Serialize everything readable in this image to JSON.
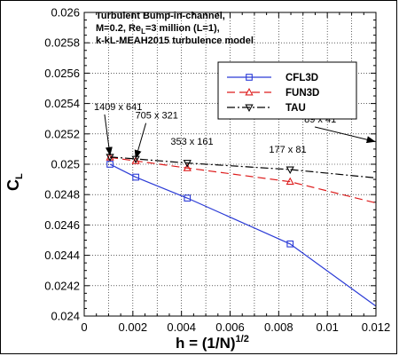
{
  "chart_data": {
    "type": "line",
    "title_lines": [
      "Turbulent Bump-in-channel,",
      "M=0.2, Re",
      "=3 million (L=1),",
      "k-kL-MEAH2015 turbulence model"
    ],
    "re_subscript": "L",
    "xlabel_main": "h = (1/N)",
    "xlabel_sup": "1/2",
    "ylabel_main": "C",
    "ylabel_sub": "L",
    "xlim": [
      0,
      0.012
    ],
    "ylim": [
      0.024,
      0.026
    ],
    "xticks": [
      0,
      0.002,
      0.004,
      0.006,
      0.008,
      0.01,
      0.012
    ],
    "xtick_labels": [
      "0",
      "0.002",
      "0.004",
      "0.006",
      "0.008",
      "0.01",
      "0.012"
    ],
    "yticks": [
      0.024,
      0.0242,
      0.0244,
      0.0246,
      0.0248,
      0.025,
      0.0252,
      0.0254,
      0.0256,
      0.0258,
      0.026
    ],
    "ytick_labels": [
      "0.024",
      "0.0242",
      "0.0244",
      "0.0246",
      "0.0248",
      "0.025",
      "0.0252",
      "0.0254",
      "0.0256",
      "0.0258",
      "0.026"
    ],
    "grid": true,
    "legend_position": "top-right",
    "series": [
      {
        "name": "CFL3D",
        "color": "#2b3bd6",
        "dash": "solid",
        "marker": "square",
        "x": [
          0.00106,
          0.00212,
          0.00424,
          0.00847
        ],
        "y": [
          0.025,
          0.024915,
          0.024777,
          0.024475
        ],
        "extend": [
          0.012,
          0.024065
        ]
      },
      {
        "name": "FUN3D",
        "color": "#dd1c1c",
        "dash": "dashed",
        "marker": "triangle-up",
        "x": [
          0.00106,
          0.00212,
          0.00424,
          0.00847
        ],
        "y": [
          0.025045,
          0.025022,
          0.024975,
          0.024885
        ],
        "extend": [
          0.012,
          0.024745
        ]
      },
      {
        "name": "TAU",
        "color": "#000000",
        "dash": "dashdot",
        "marker": "triangle-down",
        "x": [
          0.00106,
          0.00212,
          0.00424,
          0.00847
        ],
        "y": [
          0.025048,
          0.025035,
          0.025008,
          0.024965
        ],
        "extend": [
          0.012,
          0.02491
        ]
      }
    ],
    "annotations": [
      {
        "text": "1409 x 641",
        "label_x": 0.0004,
        "label_y": 0.025357,
        "target_x": 0.00106,
        "target_y": 0.02506,
        "arrow": true
      },
      {
        "text": "705 x 321",
        "label_x": 0.0021,
        "label_y": 0.0253,
        "target_x": 0.00212,
        "target_y": 0.02504,
        "arrow": true
      },
      {
        "text": "353 x 161",
        "label_x": 0.00355,
        "label_y": 0.02513,
        "target_x": 0.00424,
        "target_y": 0.02502,
        "arrow": false
      },
      {
        "text": "177 x 81",
        "label_x": 0.0076,
        "label_y": 0.025075,
        "target_x": 0.00847,
        "target_y": 0.02498,
        "arrow": false
      },
      {
        "text": "89 x 41",
        "label_x": 0.00905,
        "label_y": 0.025275,
        "target_x": 0.01195,
        "target_y": 0.02515,
        "arrow": true
      }
    ]
  }
}
